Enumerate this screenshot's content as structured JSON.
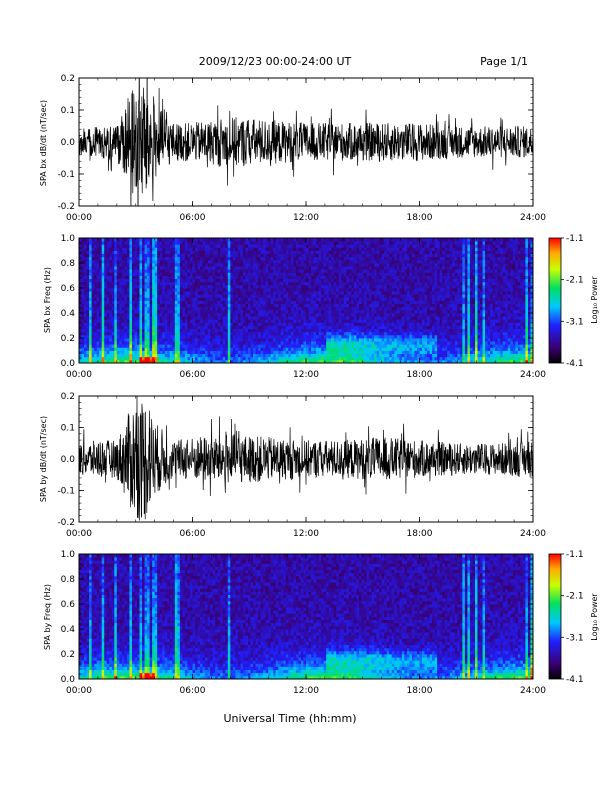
{
  "header": {
    "title": "2009/12/23  00:00-24:00 UT",
    "page": "Page 1/1"
  },
  "footer": {
    "xlabel": "Universal Time (hh:mm)"
  },
  "colors": {
    "background": "#ffffff",
    "trace": "#000000",
    "spectrogram_low": "#2a0a50",
    "spectrogram_mid": "#2f5fff",
    "spectrogram_high": "#ff1a00"
  },
  "chart_data": [
    {
      "type": "line",
      "ylabel": "SPA bx dB/dt (nT/sec)",
      "xlim": [
        "00:00",
        "24:00"
      ],
      "ylim": [
        -0.2,
        0.2
      ],
      "xticks": [
        "00:00",
        "06:00",
        "12:00",
        "18:00",
        "24:00"
      ],
      "yticks": [
        "-0.2",
        "-0.1",
        "0.0",
        "0.1",
        "0.2"
      ],
      "envelope_hours": [
        0,
        1,
        2,
        3,
        3.5,
        4,
        5,
        6,
        8,
        10,
        12,
        14,
        16,
        18,
        20,
        22,
        24
      ],
      "envelope_amplitude": [
        0.04,
        0.05,
        0.06,
        0.2,
        0.2,
        0.12,
        0.06,
        0.06,
        0.08,
        0.07,
        0.06,
        0.06,
        0.06,
        0.06,
        0.05,
        0.05,
        0.05
      ]
    },
    {
      "type": "heatmap",
      "ylabel": "SPA bx Freq (Hz)",
      "xlim": [
        "00:00",
        "24:00"
      ],
      "ylim": [
        0.0,
        1.0
      ],
      "xticks": [
        "00:00",
        "06:00",
        "12:00",
        "18:00",
        "24:00"
      ],
      "yticks": [
        "0.0",
        "0.2",
        "0.4",
        "0.6",
        "0.8",
        "1.0"
      ],
      "colorbar_label": "Log₁₀ Power",
      "colorbar_ticks": [
        "-1.1",
        "-2.1",
        "-3.1",
        "-4.1"
      ],
      "colorbar_range": [
        -4.1,
        -1.1
      ]
    },
    {
      "type": "line",
      "ylabel": "SPA by dB/dt (nT/sec)",
      "xlim": [
        "00:00",
        "24:00"
      ],
      "ylim": [
        -0.2,
        0.2
      ],
      "xticks": [
        "00:00",
        "06:00",
        "12:00",
        "18:00",
        "24:00"
      ],
      "yticks": [
        "-0.2",
        "-0.1",
        "0.0",
        "0.1",
        "0.2"
      ],
      "envelope_hours": [
        0,
        1,
        2,
        3,
        3.5,
        4,
        5,
        6,
        8,
        10,
        12,
        14,
        16,
        18,
        20,
        22,
        24
      ],
      "envelope_amplitude": [
        0.05,
        0.06,
        0.06,
        0.2,
        0.2,
        0.12,
        0.06,
        0.07,
        0.08,
        0.07,
        0.06,
        0.06,
        0.07,
        0.06,
        0.05,
        0.05,
        0.06
      ]
    },
    {
      "type": "heatmap",
      "ylabel": "SPA by Freq (Hz)",
      "xlim": [
        "00:00",
        "24:00"
      ],
      "ylim": [
        0.0,
        1.0
      ],
      "xticks": [
        "00:00",
        "06:00",
        "12:00",
        "18:00",
        "24:00"
      ],
      "yticks": [
        "0.0",
        "0.2",
        "0.4",
        "0.6",
        "0.8",
        "1.0"
      ],
      "colorbar_label": "Log₁₀ Power",
      "colorbar_ticks": [
        "-1.1",
        "-2.1",
        "-3.1",
        "-4.1"
      ],
      "colorbar_range": [
        -4.1,
        -1.1
      ]
    }
  ]
}
